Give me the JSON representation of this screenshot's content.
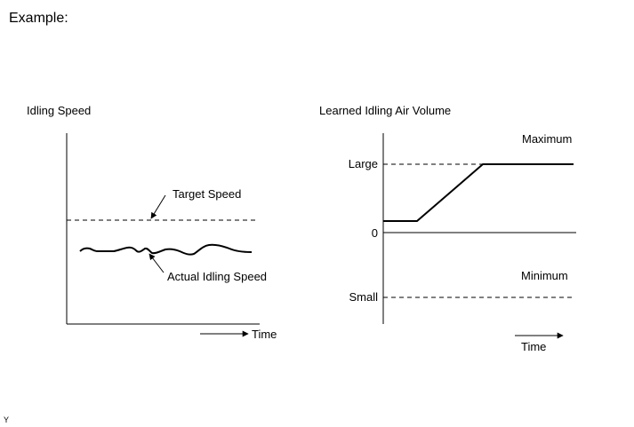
{
  "heading": "Example:",
  "left_chart": {
    "title": "Idling Speed",
    "target_label": "Target Speed",
    "actual_label": "Actual Idling Speed",
    "x_label": "Time"
  },
  "right_chart": {
    "title": "Learned Idling Air Volume",
    "large_label": "Large",
    "zero_label": "0",
    "small_label": "Small",
    "maximum_label": "Maximum",
    "minimum_label": "Minimum",
    "x_label": "Time"
  },
  "footer_code": "Y"
}
